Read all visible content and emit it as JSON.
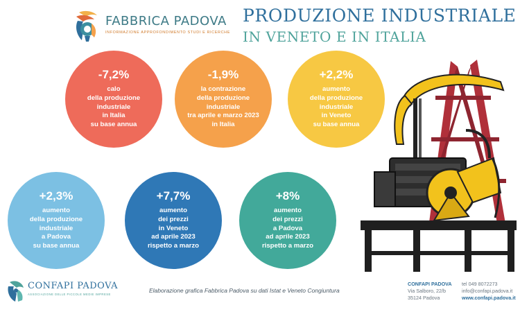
{
  "header": {
    "brand_name": "FABBRICA PADOVA",
    "brand_tagline": "INFORMAZIONE APPROFONDIMENTO STUDI E RICERCHE",
    "title_line1": "PRODUZIONE INDUSTRIALE",
    "title_line2": "IN VENETO E IN ITALIA"
  },
  "stats": [
    {
      "value": "-7,2%",
      "lines": [
        "calo",
        "della produzione",
        "industriale",
        "in Italia",
        "su base annua"
      ],
      "color": "#ee6b5a"
    },
    {
      "value": "-1,9%",
      "lines": [
        "la contrazione",
        "della produzione",
        "industriale",
        "tra aprile e marzo 2023",
        "in Italia"
      ],
      "color": "#f5a14b"
    },
    {
      "value": "+2,2%",
      "lines": [
        "aumento",
        "della produzione",
        "industriale",
        "in Veneto",
        "su base annua"
      ],
      "color": "#f7c843"
    },
    {
      "value": "+2,3%",
      "lines": [
        "aumento",
        "della produzione",
        "industriale",
        "a Padova",
        "su base annua"
      ],
      "color": "#7cc0e3"
    },
    {
      "value": "+7,7%",
      "lines": [
        "aumento",
        "dei prezzi",
        "in Veneto",
        "ad aprile 2023",
        "rispetto a marzo"
      ],
      "color": "#2f78b6"
    },
    {
      "value": "+8%",
      "lines": [
        "aumento",
        "dei prezzi",
        "a Padova",
        "ad aprile 2023",
        "rispetto a marzo"
      ],
      "color": "#42a99a"
    }
  ],
  "footer": {
    "org_name": "CONFAPI PADOVA",
    "org_tagline": "ASSOCIAZIONE DELLE PICCOLE MEDIE IMPRESE",
    "credit": "Elaborazione grafica Fabbrica Padova su dati Istat e Veneto Congiuntura",
    "address": {
      "name": "CONFAPI PADOVA",
      "street": "Via Salboro, 22/b",
      "city": "35124 Padova"
    },
    "contact": {
      "phone": "tel 049 8072273",
      "email": "info@confapi.padova.it",
      "web": "www.confapi.padova.it"
    }
  }
}
